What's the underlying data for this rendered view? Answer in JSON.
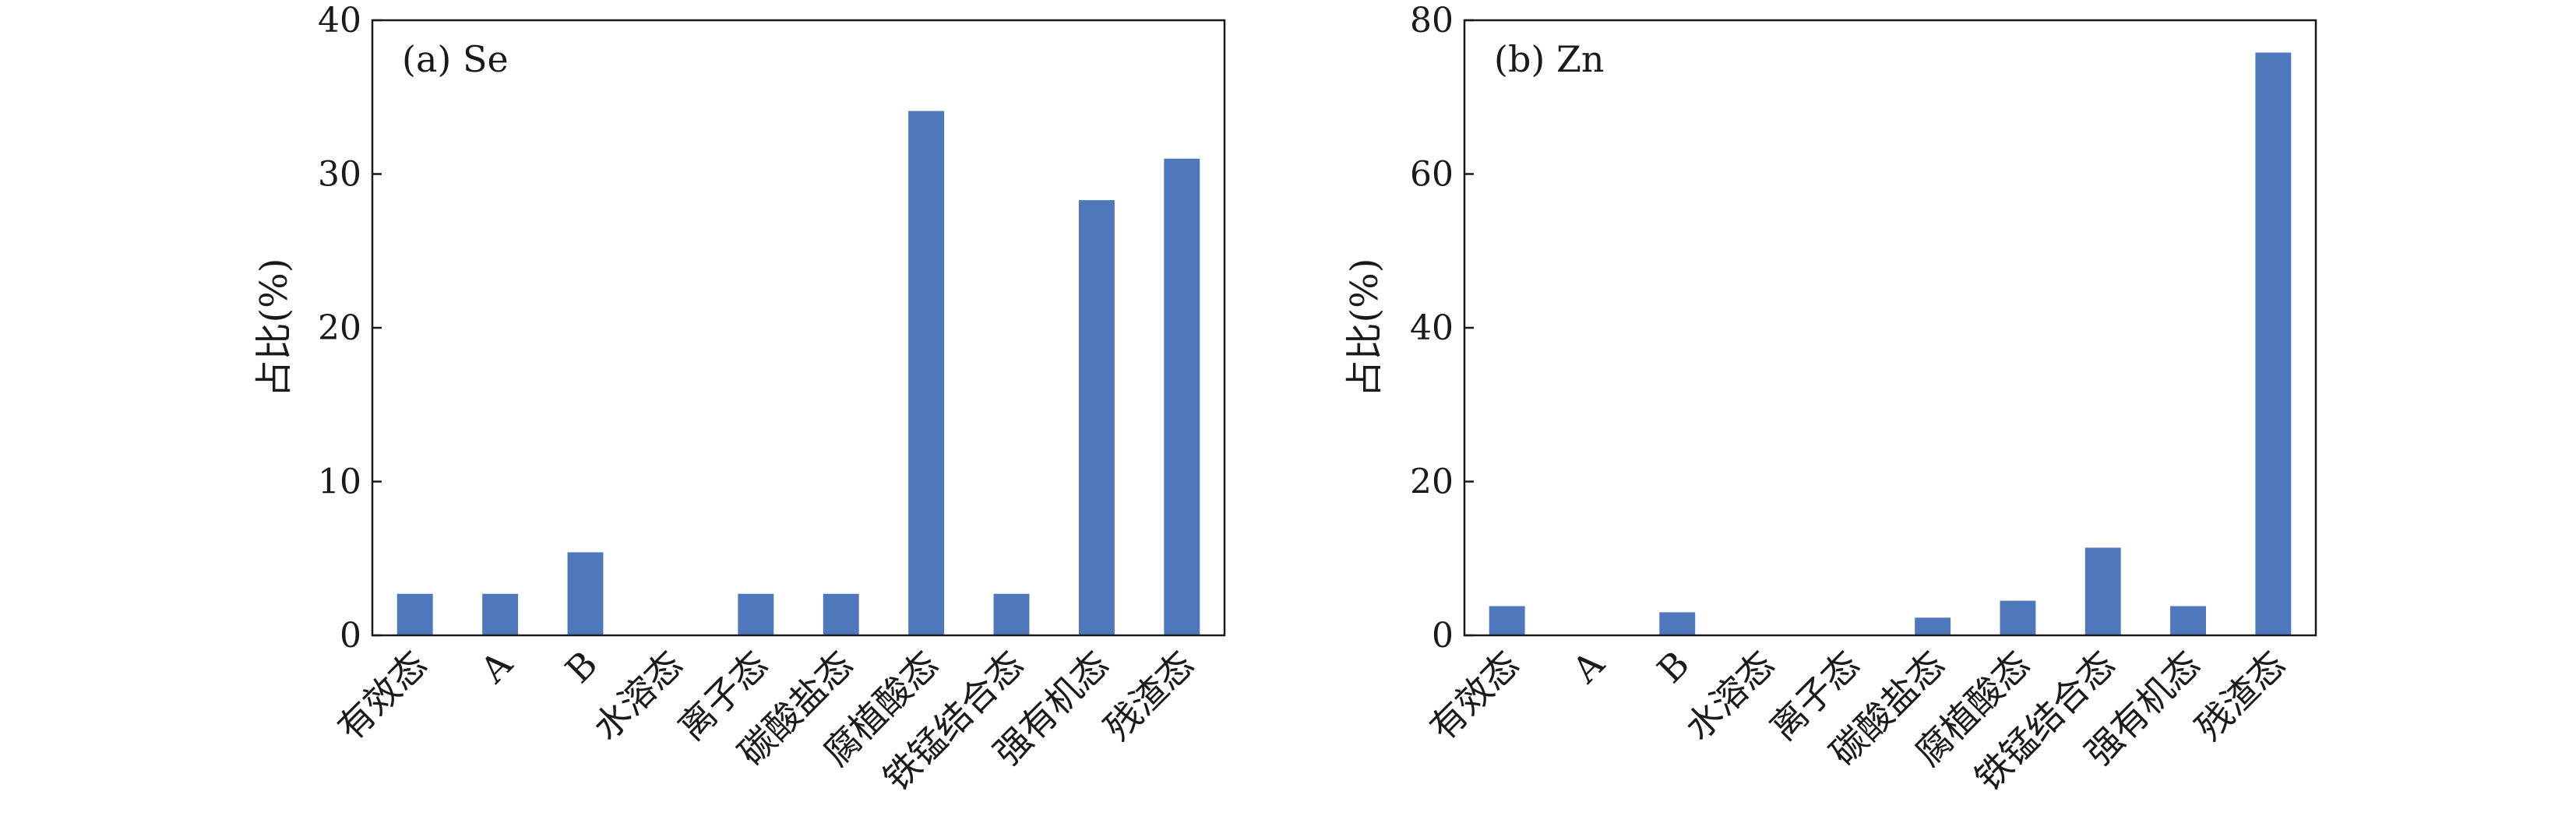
{
  "chart_data": [
    {
      "type": "bar",
      "title": "(a) Se",
      "xlabel": "",
      "ylabel": "占比(%)",
      "ylim": [
        0,
        40
      ],
      "yticks": [
        0,
        10,
        20,
        30,
        40
      ],
      "grid": false,
      "color": "#4f78bc",
      "categories": [
        "有效态",
        "A",
        "B",
        "水溶态",
        "离子态",
        "碳酸盐态",
        "腐植酸态",
        "铁锰结合态",
        "强有机态",
        "残渣态"
      ],
      "values": [
        2.7,
        2.7,
        5.4,
        0,
        2.7,
        2.7,
        34.1,
        2.7,
        28.3,
        31.0
      ]
    },
    {
      "type": "bar",
      "title": "(b) Zn",
      "xlabel": "",
      "ylabel": "占比(%)",
      "ylim": [
        0,
        80
      ],
      "yticks": [
        0,
        20,
        40,
        60,
        80
      ],
      "grid": false,
      "color": "#4f78bc",
      "categories": [
        "有效态",
        "A",
        "B",
        "水溶态",
        "离子态",
        "碳酸盐态",
        "腐植酸态",
        "铁锰结合态",
        "强有机态",
        "残渣态"
      ],
      "values": [
        3.8,
        0,
        3.0,
        0,
        0,
        2.3,
        4.5,
        11.4,
        3.8,
        75.8
      ]
    }
  ]
}
